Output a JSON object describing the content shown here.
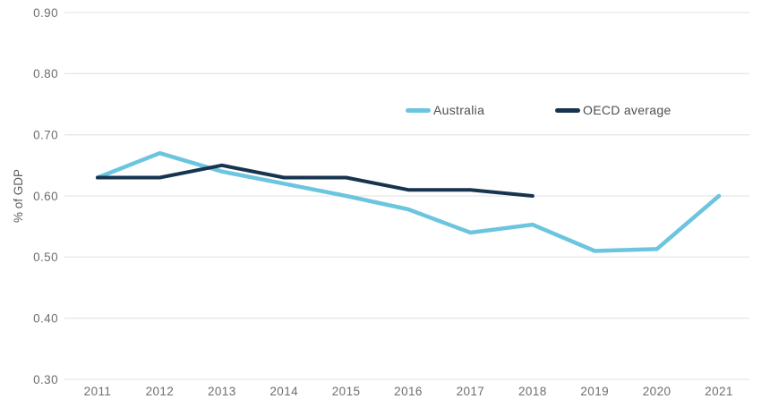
{
  "chart_data": {
    "type": "line",
    "title": "",
    "xlabel": "",
    "ylabel": "% of GDP",
    "x": [
      2011,
      2012,
      2013,
      2014,
      2015,
      2016,
      2017,
      2018,
      2019,
      2020,
      2021
    ],
    "x_tick_labels": [
      "2011",
      "2012",
      "2013",
      "2014",
      "2015",
      "2016",
      "2017",
      "2018",
      "2019",
      "2020",
      "2021"
    ],
    "y_ticks": [
      0.9,
      0.8,
      0.7,
      0.6,
      0.5,
      0.4,
      0.3
    ],
    "y_tick_labels": [
      "0.90",
      "0.80",
      "0.70",
      "0.60",
      "0.50",
      "0.40",
      "0.30"
    ],
    "ylim": [
      0.3,
      0.9
    ],
    "grid": true,
    "legend_position": "top-center-inside",
    "series": [
      {
        "name": "Australia",
        "color": "#6cc5df",
        "values": [
          0.63,
          0.67,
          0.64,
          0.62,
          0.6,
          0.578,
          0.54,
          0.553,
          0.51,
          0.513,
          0.6
        ]
      },
      {
        "name": "OECD average",
        "color": "#17344f",
        "values": [
          0.63,
          0.63,
          0.65,
          0.63,
          0.63,
          0.61,
          0.61,
          0.6,
          null,
          null,
          null
        ]
      }
    ],
    "colors": {
      "background": "#ffffff",
      "gridline": "#e7e7e7",
      "tick_text": "#6d6e71",
      "axis_title_text": "#58595b",
      "legend_text": "#4d4f53"
    }
  }
}
